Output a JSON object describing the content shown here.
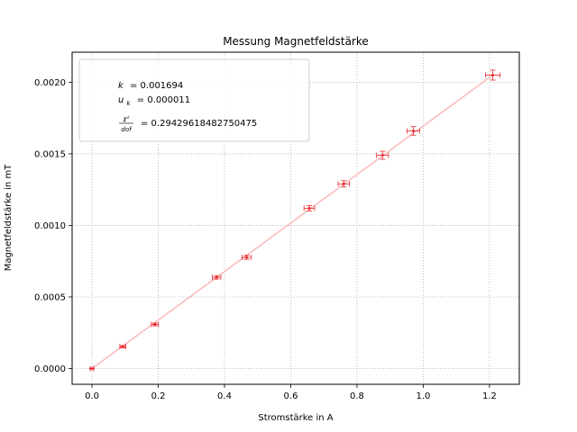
{
  "chart_data": {
    "type": "scatter",
    "title": "Messung Magnetfeldstärke",
    "xlabel": "Stromstärke in A",
    "ylabel": "Magnetfeldstärke in mT",
    "xlim": [
      -0.06,
      1.29
    ],
    "ylim": [
      -0.00011,
      0.00221
    ],
    "xticks": [
      0.0,
      0.2,
      0.4,
      0.6,
      0.8,
      1.0,
      1.2
    ],
    "xtick_labels": [
      "0.0",
      "0.2",
      "0.4",
      "0.6",
      "0.8",
      "1.0",
      "1.2"
    ],
    "yticks": [
      0.0,
      0.0005,
      0.001,
      0.0015,
      0.002
    ],
    "ytick_labels": [
      "0.0000",
      "0.0005",
      "0.0010",
      "0.0015",
      "0.0020"
    ],
    "grid": true,
    "grid_style": "dotted",
    "legend_position": "top-left",
    "legend_lines": {
      "k_sym": "k",
      "k_val": "=  0.001694",
      "uk_sym": "u",
      "uk_sub": "k",
      "uk_val": "=  0.000011",
      "chi_num": "χ²",
      "chi_den": "dof",
      "chi_val": "=  0.29429618482750475"
    },
    "series": [
      {
        "kind": "measurements",
        "color": "#e8232a",
        "x": [
          0.0,
          0.093,
          0.19,
          0.376,
          0.467,
          0.656,
          0.76,
          0.877,
          0.97,
          1.21
        ],
        "y": [
          0.0,
          0.000153,
          0.000308,
          0.000637,
          0.000777,
          0.00112,
          0.00129,
          0.00149,
          0.00166,
          0.00205
        ],
        "xerr": [
          0.005,
          0.009,
          0.011,
          0.013,
          0.014,
          0.016,
          0.017,
          0.018,
          0.019,
          0.022
        ],
        "yerr": [
          3e-06,
          8e-06,
          1e-05,
          1.2e-05,
          1.4e-05,
          1.8e-05,
          2.2e-05,
          2.8e-05,
          3e-05,
          3.5e-05
        ]
      },
      {
        "kind": "fit",
        "color": "#f9b9b9",
        "x": [
          0.0,
          1.21
        ],
        "y": [
          0.0,
          0.00205
        ]
      }
    ]
  }
}
